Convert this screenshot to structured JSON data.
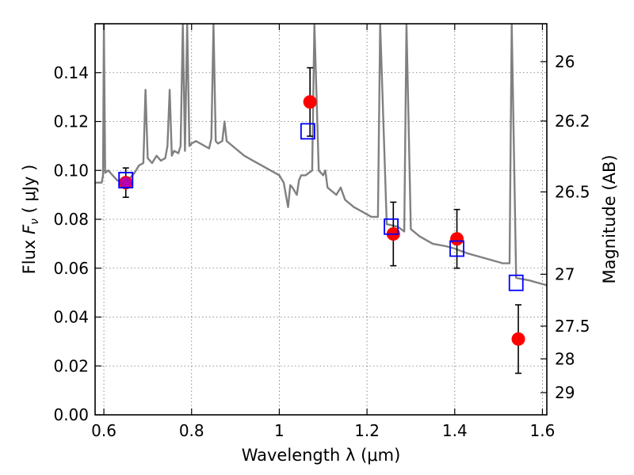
{
  "chart_data": {
    "type": "scatter",
    "xlabel": "Wavelength  λ (μm)",
    "ylabel": "Flux  F_ν  ( μJy )",
    "ylabel_parts": {
      "prefix": "Flux ",
      "symbol": "F",
      "subscript": "ν",
      "unit": "  ( μJy )"
    },
    "y2label": "Magnitude (AB)",
    "xlim": [
      0.58,
      1.61
    ],
    "ylim": [
      0.0,
      0.16
    ],
    "grid": true,
    "x_ticks": [
      {
        "value": 0.6,
        "label": "0.6"
      },
      {
        "value": 0.8,
        "label": "0.8"
      },
      {
        "value": 1.0,
        "label": "1"
      },
      {
        "value": 1.2,
        "label": "1.2"
      },
      {
        "value": 1.4,
        "label": "1.4"
      },
      {
        "value": 1.6,
        "label": "1.6"
      }
    ],
    "y_ticks": [
      {
        "value": 0.0,
        "label": "0.00"
      },
      {
        "value": 0.02,
        "label": "0.02"
      },
      {
        "value": 0.04,
        "label": "0.04"
      },
      {
        "value": 0.06,
        "label": "0.06"
      },
      {
        "value": 0.08,
        "label": "0.08"
      },
      {
        "value": 0.1,
        "label": "0.10"
      },
      {
        "value": 0.12,
        "label": "0.12"
      },
      {
        "value": 0.14,
        "label": "0.14"
      }
    ],
    "y2_ticks": [
      {
        "flux": 0.1445,
        "label": "26"
      },
      {
        "flux": 0.1202,
        "label": "26.2"
      },
      {
        "flux": 0.0912,
        "label": "26.5"
      },
      {
        "flux": 0.0575,
        "label": "27"
      },
      {
        "flux": 0.0363,
        "label": "27.5"
      },
      {
        "flux": 0.0229,
        "label": "28"
      },
      {
        "flux": 0.0091,
        "label": "29"
      }
    ],
    "series": [
      {
        "kind": "line",
        "color": "#808080",
        "points": [
          [
            0.58,
            0.095
          ],
          [
            0.595,
            0.095
          ],
          [
            0.598,
            0.098
          ],
          [
            0.6,
            0.16
          ],
          [
            0.603,
            0.099
          ],
          [
            0.61,
            0.1
          ],
          [
            0.62,
            0.098
          ],
          [
            0.63,
            0.096
          ],
          [
            0.64,
            0.095
          ],
          [
            0.65,
            0.095
          ],
          [
            0.66,
            0.097
          ],
          [
            0.67,
            0.099
          ],
          [
            0.68,
            0.102
          ],
          [
            0.69,
            0.103
          ],
          [
            0.695,
            0.133
          ],
          [
            0.7,
            0.105
          ],
          [
            0.71,
            0.103
          ],
          [
            0.72,
            0.106
          ],
          [
            0.73,
            0.104
          ],
          [
            0.74,
            0.105
          ],
          [
            0.745,
            0.11
          ],
          [
            0.75,
            0.133
          ],
          [
            0.755,
            0.106
          ],
          [
            0.76,
            0.108
          ],
          [
            0.77,
            0.107
          ],
          [
            0.775,
            0.11
          ],
          [
            0.78,
            0.16
          ],
          [
            0.785,
            0.108
          ],
          [
            0.79,
            0.16
          ],
          [
            0.795,
            0.11
          ],
          [
            0.8,
            0.111
          ],
          [
            0.81,
            0.112
          ],
          [
            0.82,
            0.111
          ],
          [
            0.83,
            0.11
          ],
          [
            0.84,
            0.109
          ],
          [
            0.845,
            0.113
          ],
          [
            0.85,
            0.16
          ],
          [
            0.855,
            0.112
          ],
          [
            0.86,
            0.111
          ],
          [
            0.87,
            0.112
          ],
          [
            0.875,
            0.12
          ],
          [
            0.88,
            0.112
          ],
          [
            0.9,
            0.109
          ],
          [
            0.92,
            0.106
          ],
          [
            0.94,
            0.104
          ],
          [
            0.96,
            0.102
          ],
          [
            0.98,
            0.1
          ],
          [
            0.99,
            0.099
          ],
          [
            1.0,
            0.098
          ],
          [
            1.01,
            0.095
          ],
          [
            1.02,
            0.085
          ],
          [
            1.025,
            0.094
          ],
          [
            1.03,
            0.093
          ],
          [
            1.04,
            0.09
          ],
          [
            1.045,
            0.096
          ],
          [
            1.05,
            0.098
          ],
          [
            1.06,
            0.098
          ],
          [
            1.075,
            0.1
          ],
          [
            1.08,
            0.16
          ],
          [
            1.09,
            0.1
          ],
          [
            1.1,
            0.098
          ],
          [
            1.105,
            0.1
          ],
          [
            1.11,
            0.093
          ],
          [
            1.13,
            0.09
          ],
          [
            1.14,
            0.093
          ],
          [
            1.15,
            0.088
          ],
          [
            1.17,
            0.085
          ],
          [
            1.19,
            0.083
          ],
          [
            1.21,
            0.081
          ],
          [
            1.225,
            0.081
          ],
          [
            1.23,
            0.16
          ],
          [
            1.245,
            0.078
          ],
          [
            1.27,
            0.077
          ],
          [
            1.285,
            0.075
          ],
          [
            1.29,
            0.16
          ],
          [
            1.3,
            0.076
          ],
          [
            1.32,
            0.073
          ],
          [
            1.35,
            0.07
          ],
          [
            1.38,
            0.069
          ],
          [
            1.4,
            0.068
          ],
          [
            1.43,
            0.066
          ],
          [
            1.47,
            0.064
          ],
          [
            1.51,
            0.062
          ],
          [
            1.525,
            0.062
          ],
          [
            1.53,
            0.16
          ],
          [
            1.54,
            0.056
          ],
          [
            1.57,
            0.055
          ],
          [
            1.61,
            0.053
          ]
        ]
      },
      {
        "kind": "markers",
        "marker": "circle",
        "color": "#ff0000",
        "points": [
          {
            "x": 0.65,
            "y": 0.095,
            "yerr": 0.006
          },
          {
            "x": 1.07,
            "y": 0.128,
            "yerr": 0.014
          },
          {
            "x": 1.26,
            "y": 0.074,
            "yerr": 0.013
          },
          {
            "x": 1.405,
            "y": 0.072,
            "yerr": 0.012
          },
          {
            "x": 1.545,
            "y": 0.031,
            "yerr": 0.014
          }
        ]
      },
      {
        "kind": "markers",
        "marker": "square",
        "color": "#0000ff",
        "points": [
          {
            "x": 0.65,
            "y": 0.096
          },
          {
            "x": 1.065,
            "y": 0.116
          },
          {
            "x": 1.255,
            "y": 0.077
          },
          {
            "x": 1.405,
            "y": 0.068
          },
          {
            "x": 1.54,
            "y": 0.054
          }
        ]
      }
    ]
  }
}
